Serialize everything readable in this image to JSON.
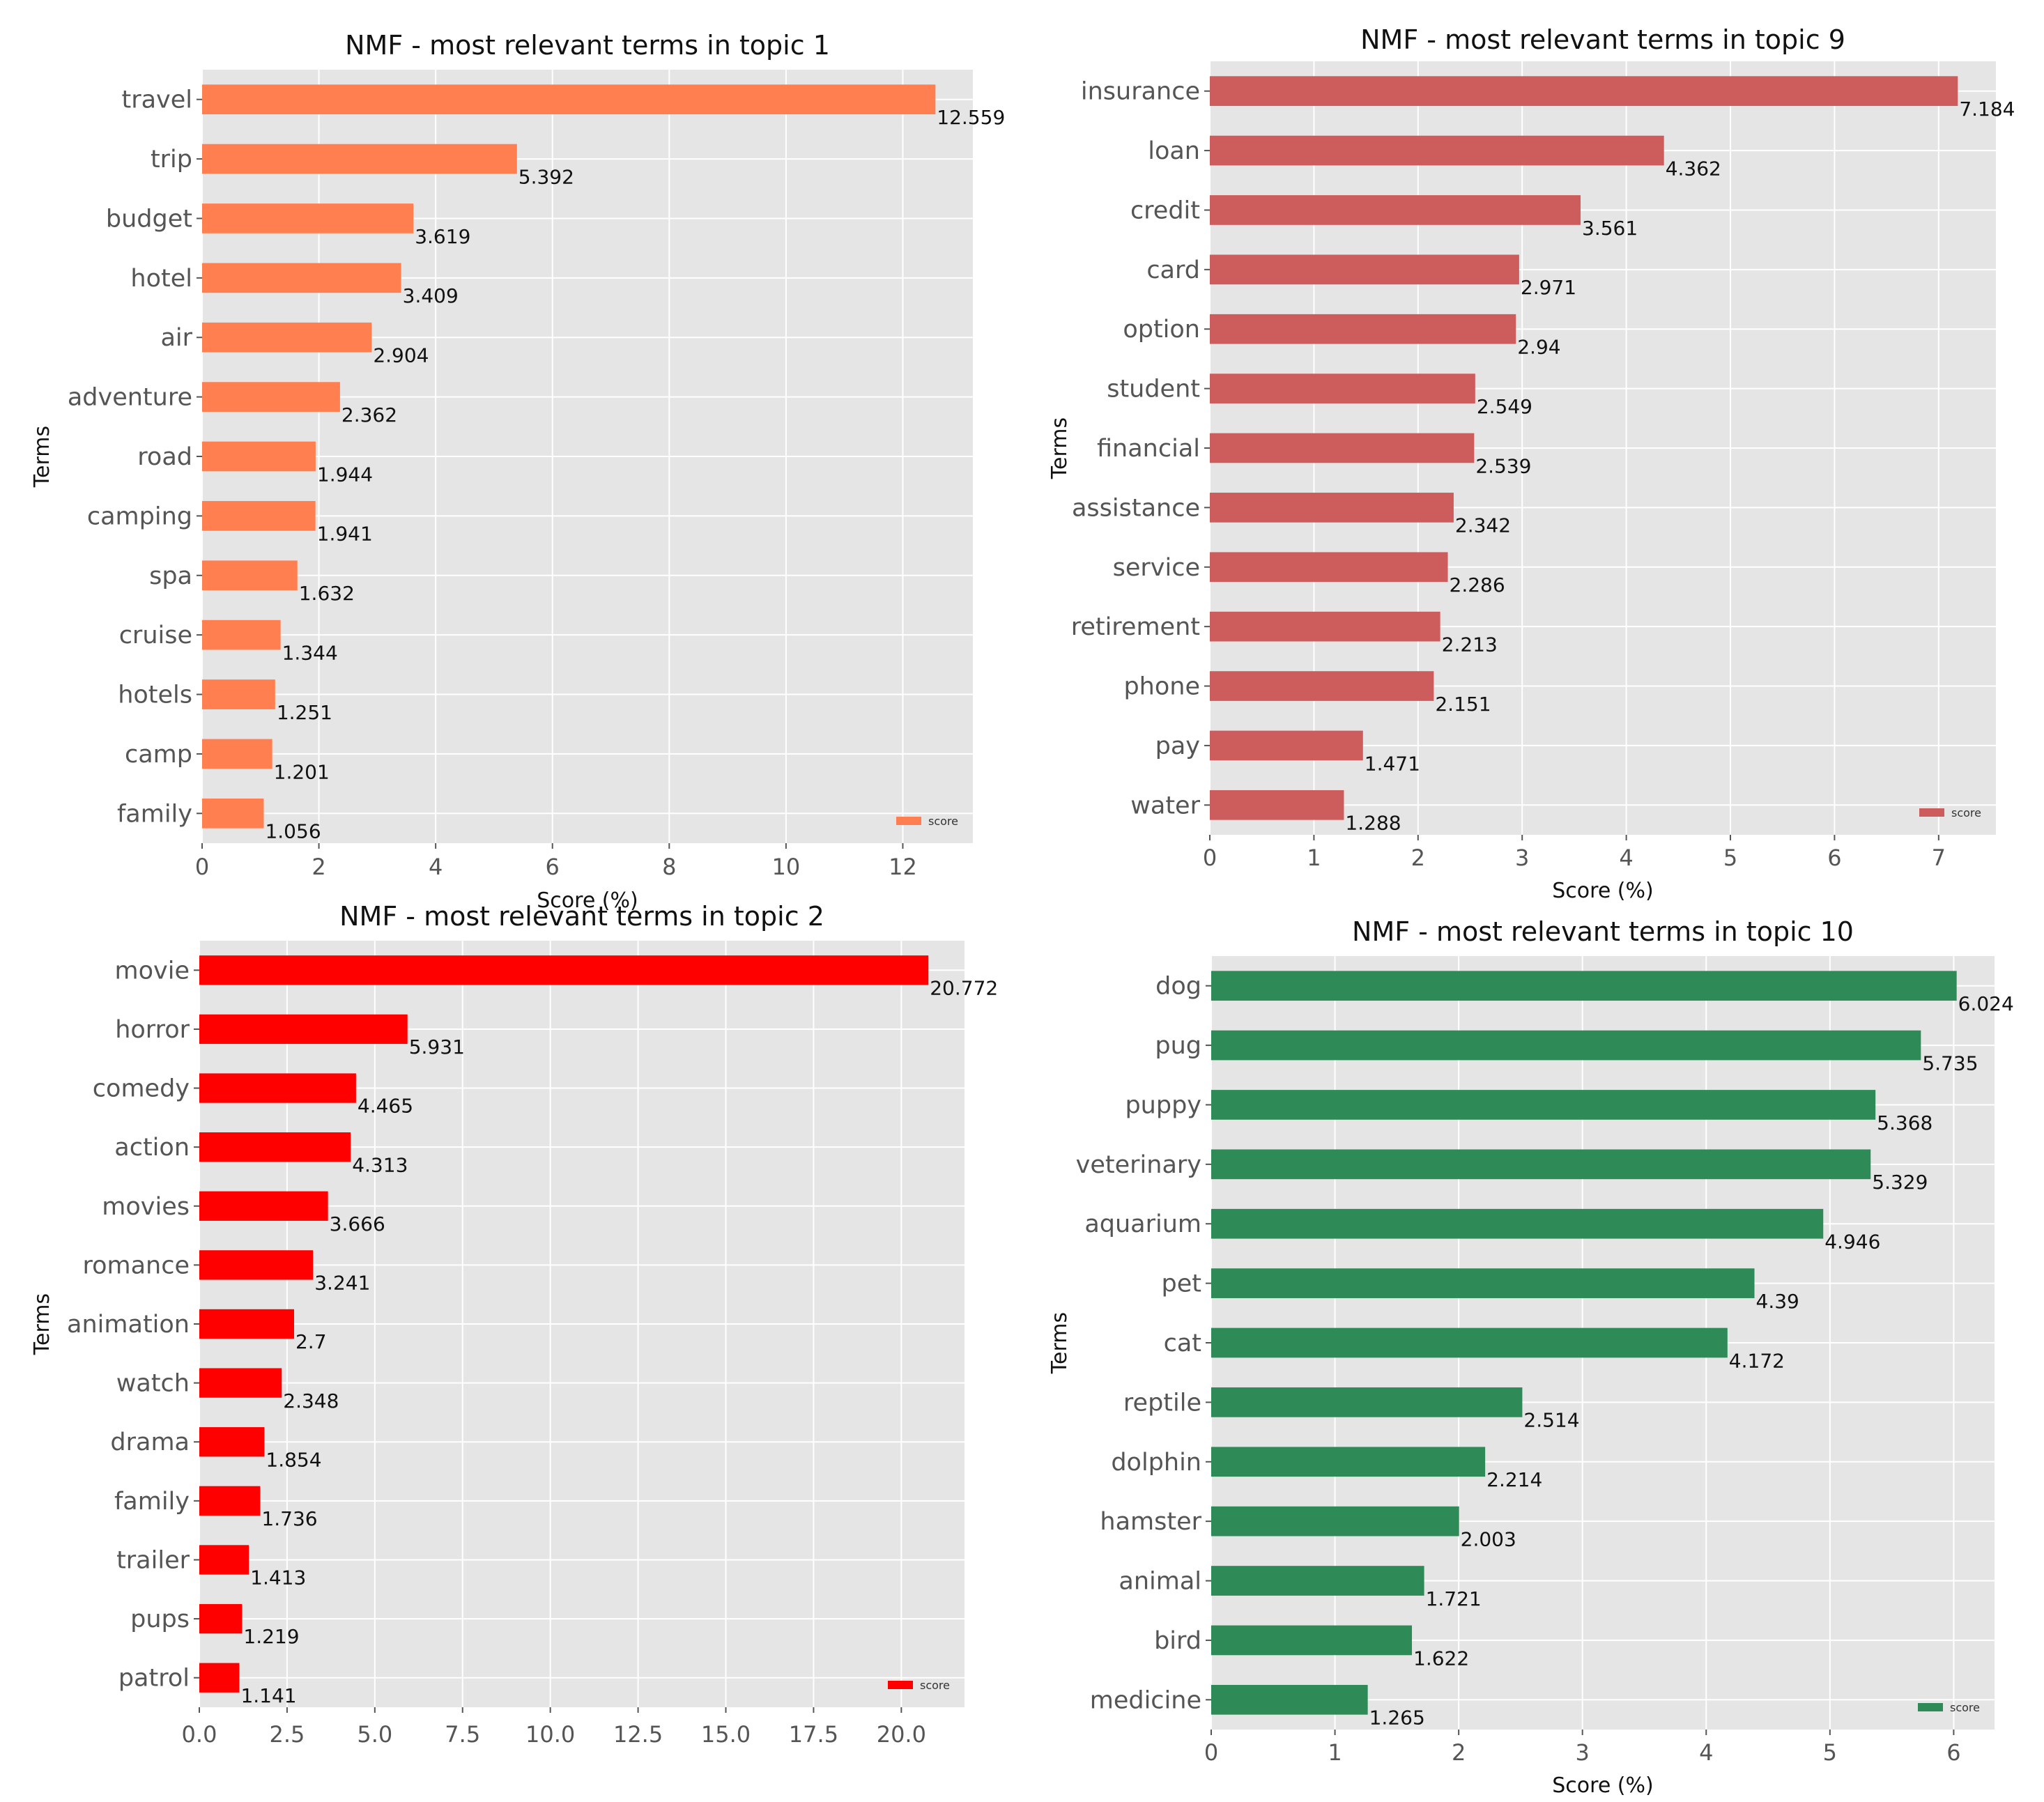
{
  "chart_data": [
    {
      "type": "bar",
      "orientation": "horizontal",
      "title": "NMF - most relevant terms in topic 1",
      "xlabel": "Score (%)",
      "ylabel": "Terms",
      "xlim": [
        0,
        13.2
      ],
      "xticks": [
        "0",
        "2",
        "4",
        "6",
        "8",
        "10",
        "12"
      ],
      "xtick_values": [
        0,
        2,
        4,
        6,
        8,
        10,
        12
      ],
      "color": "#FF7F50",
      "grid": true,
      "legend": "bottom-right",
      "legend_label": "score",
      "categories": [
        "travel",
        "trip",
        "budget",
        "hotel",
        "air",
        "adventure",
        "road",
        "camping",
        "spa",
        "cruise",
        "hotels",
        "camp",
        "family"
      ],
      "values": [
        12.559,
        5.392,
        3.619,
        3.409,
        2.904,
        2.362,
        1.944,
        1.941,
        1.632,
        1.344,
        1.251,
        1.201,
        1.056
      ],
      "value_labels": [
        "12.559",
        "5.392",
        "3.619",
        "3.409",
        "2.904",
        "2.362",
        "1.944",
        "1.941",
        "1.632",
        "1.344",
        "1.251",
        "1.201",
        "1.056"
      ]
    },
    {
      "type": "bar",
      "orientation": "horizontal",
      "title": "NMF - most relevant terms in topic 9",
      "xlabel": "Score (%)",
      "ylabel": "Terms",
      "xlim": [
        0,
        7.55
      ],
      "xticks": [
        "0",
        "1",
        "2",
        "3",
        "4",
        "5",
        "6",
        "7"
      ],
      "xtick_values": [
        0,
        1,
        2,
        3,
        4,
        5,
        6,
        7
      ],
      "color": "#CD5C5C",
      "grid": true,
      "legend": "bottom-right",
      "legend_label": "score",
      "categories": [
        "insurance",
        "loan",
        "credit",
        "card",
        "option",
        "student",
        "financial",
        "assistance",
        "service",
        "retirement",
        "phone",
        "pay",
        "water"
      ],
      "values": [
        7.184,
        4.362,
        3.561,
        2.971,
        2.94,
        2.549,
        2.539,
        2.342,
        2.286,
        2.213,
        2.151,
        1.471,
        1.288
      ],
      "value_labels": [
        "7.184",
        "4.362",
        "3.561",
        "2.971",
        "2.94",
        "2.549",
        "2.539",
        "2.342",
        "2.286",
        "2.213",
        "2.151",
        "1.471",
        "1.288"
      ]
    },
    {
      "type": "bar",
      "orientation": "horizontal",
      "title": "NMF - most relevant terms in topic 2",
      "xlabel": "",
      "ylabel": "Terms",
      "xlim": [
        0,
        21.8
      ],
      "xticks": [
        "0.0",
        "2.5",
        "5.0",
        "7.5",
        "10.0",
        "12.5",
        "15.0",
        "17.5",
        "20.0"
      ],
      "xtick_values": [
        0,
        2.5,
        5,
        7.5,
        10,
        12.5,
        15,
        17.5,
        20
      ],
      "color": "#FF0000",
      "grid": true,
      "legend": "bottom-right",
      "legend_label": "score",
      "categories": [
        "movie",
        "horror",
        "comedy",
        "action",
        "movies",
        "romance",
        "animation",
        "watch",
        "drama",
        "family",
        "trailer",
        "pups",
        "patrol"
      ],
      "values": [
        20.772,
        5.931,
        4.465,
        4.313,
        3.666,
        3.241,
        2.7,
        2.348,
        1.854,
        1.736,
        1.413,
        1.219,
        1.141
      ],
      "value_labels": [
        "20.772",
        "5.931",
        "4.465",
        "4.313",
        "3.666",
        "3.241",
        "2.7",
        "2.348",
        "1.854",
        "1.736",
        "1.413",
        "1.219",
        "1.141"
      ]
    },
    {
      "type": "bar",
      "orientation": "horizontal",
      "title": "NMF - most relevant terms in topic 10",
      "xlabel": "Score (%)",
      "ylabel": "Terms",
      "xlim": [
        0,
        6.33
      ],
      "xticks": [
        "0",
        "1",
        "2",
        "3",
        "4",
        "5",
        "6"
      ],
      "xtick_values": [
        0,
        1,
        2,
        3,
        4,
        5,
        6
      ],
      "color": "#2E8B57",
      "grid": true,
      "legend": "bottom-right",
      "legend_label": "score",
      "categories": [
        "dog",
        "pug",
        "puppy",
        "veterinary",
        "aquarium",
        "pet",
        "cat",
        "reptile",
        "dolphin",
        "hamster",
        "animal",
        "bird",
        "medicine"
      ],
      "values": [
        6.024,
        5.735,
        5.368,
        5.329,
        4.946,
        4.39,
        4.172,
        2.514,
        2.214,
        2.003,
        1.721,
        1.622,
        1.265
      ],
      "value_labels": [
        "6.024",
        "5.735",
        "5.368",
        "5.329",
        "4.946",
        "4.39",
        "4.172",
        "2.514",
        "2.214",
        "2.003",
        "1.721",
        "1.622",
        "1.265"
      ]
    }
  ]
}
